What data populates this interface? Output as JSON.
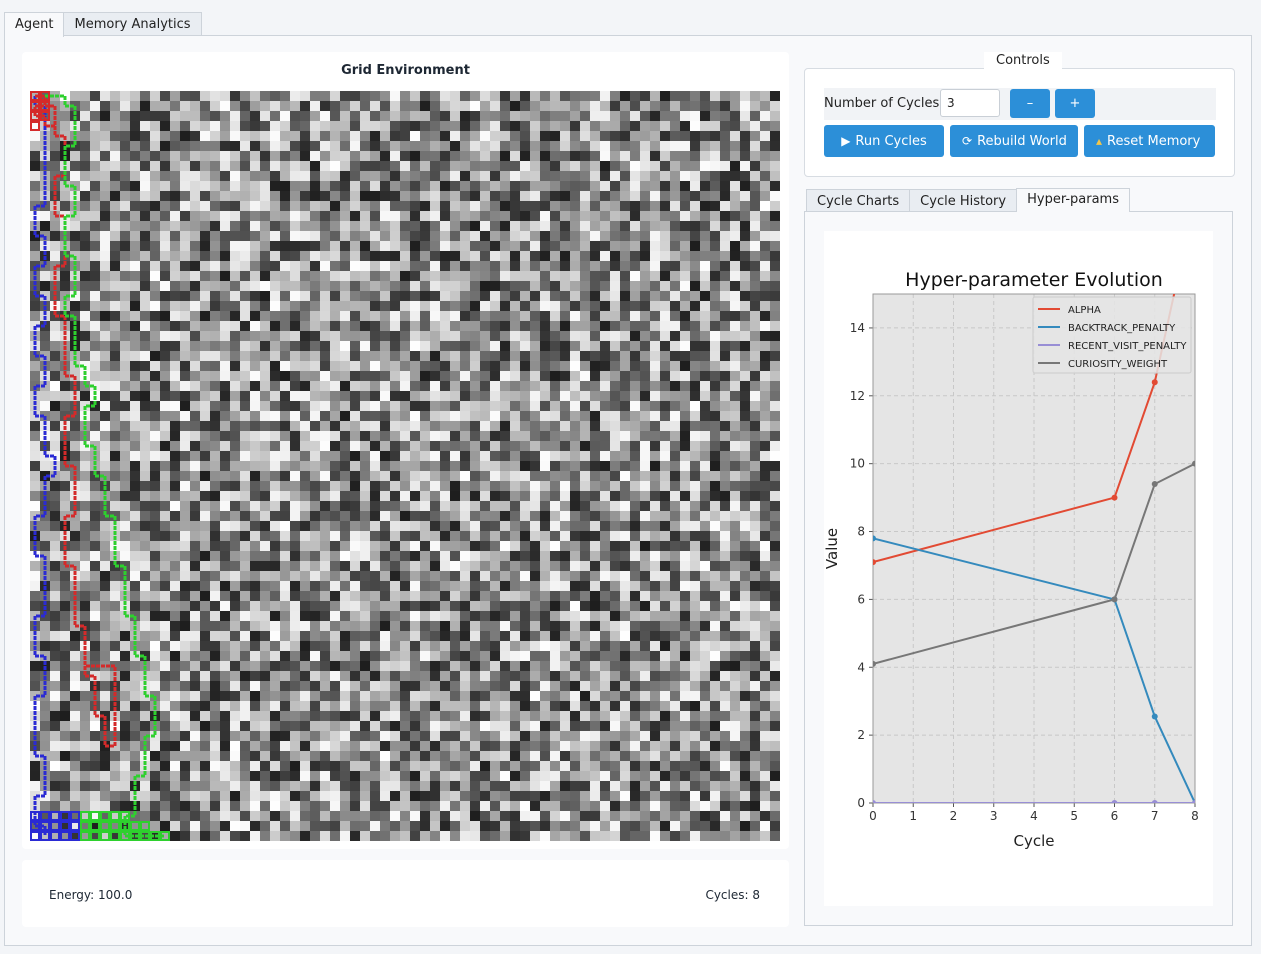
{
  "tabs": [
    "Agent",
    "Memory Analytics"
  ],
  "active_tab": 0,
  "grid": {
    "title": "Grid Environment",
    "cells": 75,
    "path_colors": {
      "red": "#d42a2a",
      "green": "#2ed02e",
      "blue": "#2a2ad4"
    }
  },
  "status": {
    "energy": "Energy: 100.0",
    "cycles": "Cycles: 8"
  },
  "controls": {
    "legend": "Controls",
    "cycles_label": "Number of Cycles:",
    "cycles_value": "3",
    "minus_label": "–",
    "plus_label": "+",
    "run_label": "Run Cycles",
    "rebuild_label": "Rebuild World",
    "reset_label": "Reset Memory",
    "accent": "#2c8fd8"
  },
  "subtabs": [
    "Cycle Charts",
    "Cycle History",
    "Hyper-params"
  ],
  "active_subtab": 2,
  "chart_data": {
    "type": "line",
    "title": "Hyper-parameter Evolution",
    "xlabel": "Cycle",
    "ylabel": "Value",
    "xlim": [
      0,
      8
    ],
    "ylim": [
      0,
      15
    ],
    "xticks": [
      0,
      1,
      2,
      3,
      4,
      5,
      6,
      7,
      8
    ],
    "yticks": [
      0,
      2,
      4,
      6,
      8,
      10,
      12,
      14
    ],
    "grid": true,
    "legend_position": "top-right",
    "series": [
      {
        "name": "ALPHA",
        "color": "#e24a33",
        "x": [
          0,
          6,
          7,
          8
        ],
        "y": [
          7.1,
          9.0,
          12.4,
          17.8
        ]
      },
      {
        "name": "BACKTRACK_PENALTY",
        "color": "#348abd",
        "x": [
          0,
          6,
          7,
          8
        ],
        "y": [
          7.8,
          6.0,
          2.55,
          0.0
        ]
      },
      {
        "name": "RECENT_VISIT_PENALTY",
        "color": "#988ed5",
        "x": [
          0,
          6,
          7,
          8
        ],
        "y": [
          0.0,
          0.0,
          0.0,
          0.0
        ]
      },
      {
        "name": "CURIOSITY_WEIGHT",
        "color": "#777777",
        "x": [
          0,
          6,
          7,
          8
        ],
        "y": [
          4.1,
          6.0,
          9.4,
          10.0
        ]
      }
    ]
  }
}
